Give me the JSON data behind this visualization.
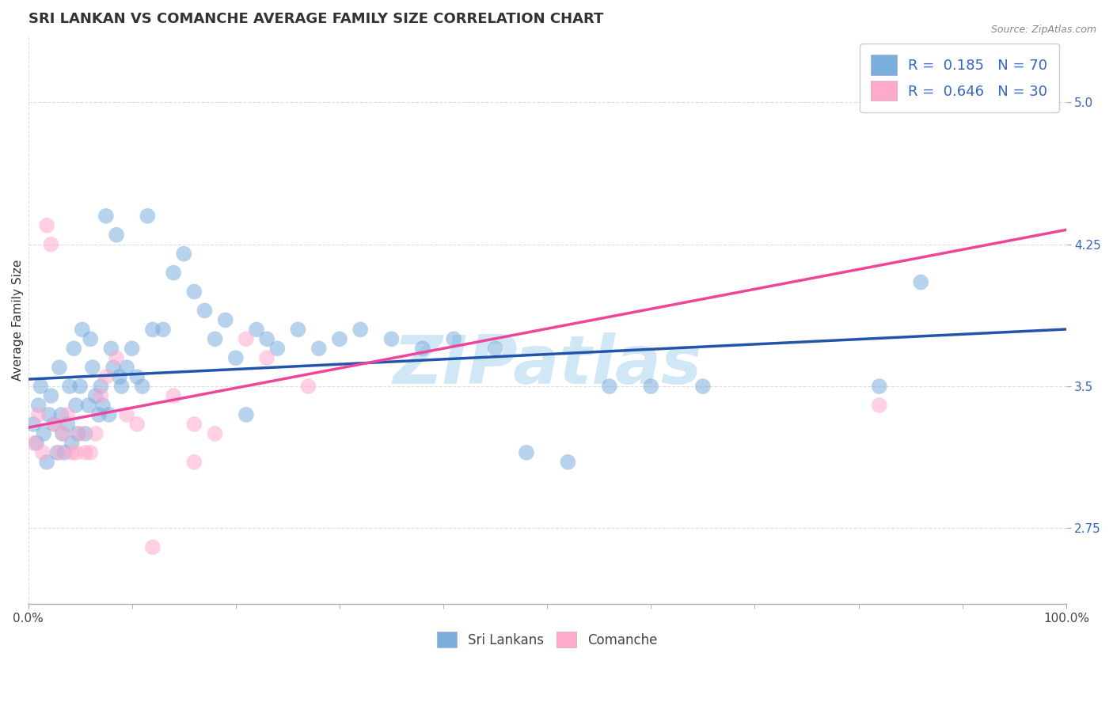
{
  "title": "SRI LANKAN VS COMANCHE AVERAGE FAMILY SIZE CORRELATION CHART",
  "source_text": "Source: ZipAtlas.com",
  "ylabel": "Average Family Size",
  "xlim": [
    0,
    1
  ],
  "ylim": [
    2.35,
    5.35
  ],
  "yticks": [
    2.75,
    3.5,
    4.25,
    5.0
  ],
  "xticks": [
    0.0,
    1.0
  ],
  "xticklabels": [
    "0.0%",
    "100.0%"
  ],
  "sri_lankans": {
    "label": "Sri Lankans",
    "R": 0.185,
    "N": 70,
    "color": "#7aaedd",
    "trend_color": "#2255aa",
    "x": [
      0.005,
      0.008,
      0.01,
      0.012,
      0.015,
      0.018,
      0.02,
      0.022,
      0.025,
      0.028,
      0.03,
      0.032,
      0.033,
      0.035,
      0.038,
      0.04,
      0.042,
      0.044,
      0.046,
      0.048,
      0.05,
      0.052,
      0.055,
      0.058,
      0.06,
      0.062,
      0.065,
      0.068,
      0.07,
      0.072,
      0.075,
      0.078,
      0.08,
      0.082,
      0.085,
      0.088,
      0.09,
      0.095,
      0.1,
      0.105,
      0.11,
      0.115,
      0.12,
      0.13,
      0.14,
      0.15,
      0.16,
      0.17,
      0.18,
      0.19,
      0.2,
      0.21,
      0.22,
      0.23,
      0.24,
      0.26,
      0.28,
      0.3,
      0.32,
      0.35,
      0.38,
      0.41,
      0.45,
      0.48,
      0.52,
      0.56,
      0.6,
      0.65,
      0.82,
      0.86
    ],
    "y": [
      3.3,
      3.2,
      3.4,
      3.5,
      3.25,
      3.1,
      3.35,
      3.45,
      3.3,
      3.15,
      3.6,
      3.35,
      3.25,
      3.15,
      3.3,
      3.5,
      3.2,
      3.7,
      3.4,
      3.25,
      3.5,
      3.8,
      3.25,
      3.4,
      3.75,
      3.6,
      3.45,
      3.35,
      3.5,
      3.4,
      4.4,
      3.35,
      3.7,
      3.6,
      4.3,
      3.55,
      3.5,
      3.6,
      3.7,
      3.55,
      3.5,
      4.4,
      3.8,
      3.8,
      4.1,
      4.2,
      4.0,
      3.9,
      3.75,
      3.85,
      3.65,
      3.35,
      3.8,
      3.75,
      3.7,
      3.8,
      3.7,
      3.75,
      3.8,
      3.75,
      3.7,
      3.75,
      3.7,
      3.15,
      3.1,
      3.5,
      3.5,
      3.5,
      3.5,
      4.05
    ]
  },
  "comanche": {
    "label": "Comanche",
    "R": 0.646,
    "N": 30,
    "color": "#ffaacc",
    "trend_color": "#ee4499",
    "x": [
      0.006,
      0.01,
      0.014,
      0.018,
      0.022,
      0.026,
      0.03,
      0.034,
      0.038,
      0.042,
      0.046,
      0.05,
      0.055,
      0.06,
      0.065,
      0.07,
      0.075,
      0.085,
      0.095,
      0.105,
      0.12,
      0.14,
      0.16,
      0.18,
      0.21,
      0.23,
      0.27,
      0.16,
      0.82,
      0.96
    ],
    "y": [
      3.2,
      3.35,
      3.15,
      4.35,
      4.25,
      3.3,
      3.15,
      3.25,
      3.35,
      3.15,
      3.15,
      3.25,
      3.15,
      3.15,
      3.25,
      3.45,
      3.55,
      3.65,
      3.35,
      3.3,
      2.65,
      3.45,
      3.1,
      3.25,
      3.75,
      3.65,
      3.5,
      3.3,
      3.4,
      5.05
    ]
  },
  "watermark": "ZIPatlas",
  "watermark_color": "#d0e8f5",
  "grid_color": "#dddddd",
  "title_fontsize": 13,
  "axis_label_fontsize": 11,
  "tick_fontsize": 11,
  "legend_fontsize": 13,
  "marker_size": 200,
  "marker_alpha": 0.55
}
